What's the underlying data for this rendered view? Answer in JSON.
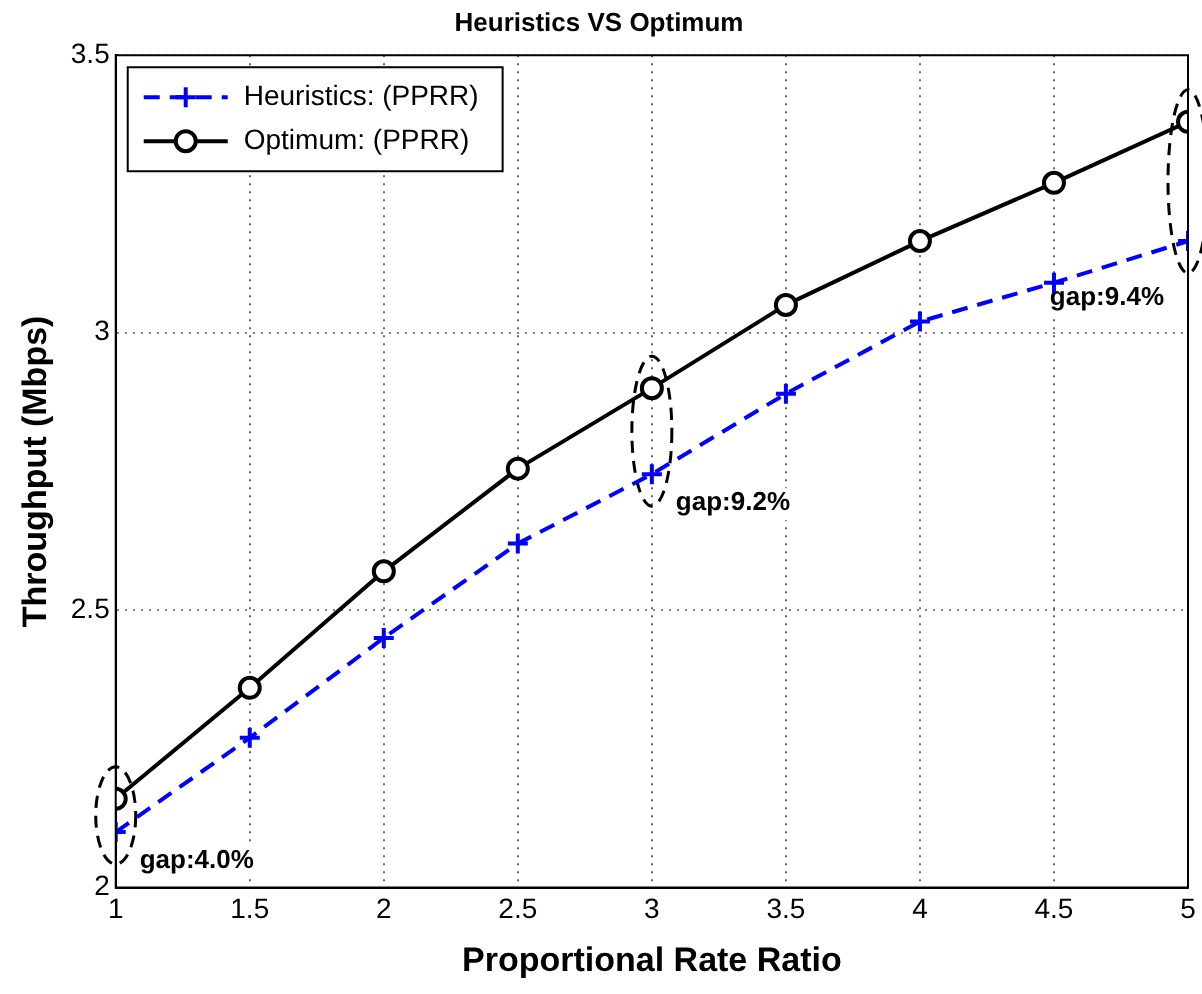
{
  "chart_data": {
    "type": "line",
    "title": "Heuristics VS Optimum",
    "xlabel": "Proportional Rate Ratio",
    "ylabel": "Throughput (Mbps)",
    "x": [
      1,
      1.5,
      2,
      2.5,
      3,
      3.5,
      4,
      4.5,
      5
    ],
    "series": [
      {
        "name": "Heuristics: (PPRR)",
        "color": "#0000ff",
        "values": [
          2.1,
          2.27,
          2.45,
          2.62,
          2.745,
          2.89,
          3.02,
          3.09,
          3.165
        ],
        "marker": "cross",
        "line_style": "dashed"
      },
      {
        "name": "Optimum: (PPRR)",
        "color": "#000000",
        "values": [
          2.16,
          2.36,
          2.57,
          2.755,
          2.9,
          3.05,
          3.165,
          3.27,
          3.38
        ],
        "marker": "circle",
        "line_style": "solid"
      }
    ],
    "xlim": [
      1,
      5
    ],
    "xticks": [
      1,
      1.5,
      2,
      2.5,
      3,
      3.5,
      4,
      4.5,
      5
    ],
    "ylim": [
      2,
      3.5
    ],
    "yticks": [
      2,
      2.5,
      3,
      3.5
    ],
    "grid": true,
    "legend": "top left",
    "annotations": [
      {
        "text": "gap:4.0%",
        "x": 1,
        "y": 2.1
      },
      {
        "text": "gap:9.2%",
        "x": 3,
        "y": 2.745
      },
      {
        "text": "gap:9.4%",
        "x": 5,
        "y": 3.165
      }
    ]
  }
}
